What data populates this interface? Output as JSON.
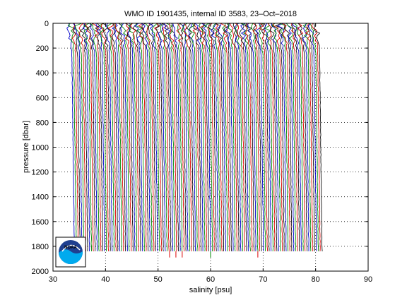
{
  "chart_data": {
    "type": "line",
    "title": "WMO ID 1901435, internal ID 3583, 23–Oct–2018",
    "xlabel": "salinity [psu]",
    "ylabel": "pressure [dbar]",
    "xlim": [
      30,
      90
    ],
    "ylim": [
      0,
      2000
    ],
    "y_reversed": true,
    "x_ticks": [
      30,
      40,
      50,
      60,
      70,
      80,
      90
    ],
    "y_ticks": [
      0,
      200,
      400,
      600,
      800,
      1000,
      1200,
      1400,
      1600,
      1800,
      2000
    ],
    "x_tick_labels": [
      "30",
      "40",
      "50",
      "60",
      "70",
      "80",
      "90"
    ],
    "y_tick_labels": [
      "0",
      "200",
      "400",
      "600",
      "800",
      "1000",
      "1200",
      "1400",
      "1600",
      "1800",
      "2000"
    ],
    "grid": true,
    "profiles": {
      "count": 132,
      "salinity_start": 33.6,
      "salinity_step": 0.36,
      "pressure_top": 0,
      "pressure_bottom": 1840,
      "colors": [
        "#0000cc",
        "#008800",
        "#dd0000",
        "#111111"
      ]
    },
    "spikes": [
      {
        "x": 52.2,
        "y_from": 1840,
        "y_to": 1890,
        "color": "#dd0000"
      },
      {
        "x": 53.4,
        "y_from": 1840,
        "y_to": 1890,
        "color": "#dd0000"
      },
      {
        "x": 54.6,
        "y_from": 1840,
        "y_to": 1890,
        "color": "#dd0000"
      },
      {
        "x": 60.0,
        "y_from": 1840,
        "y_to": 1890,
        "color": "#008800"
      },
      {
        "x": 69.0,
        "y_from": 1840,
        "y_to": 1890,
        "color": "#dd0000"
      }
    ]
  },
  "logo": {
    "text": "NOAA",
    "colors": {
      "sky": "#1f3f8f",
      "sea": "#00aaee"
    }
  }
}
